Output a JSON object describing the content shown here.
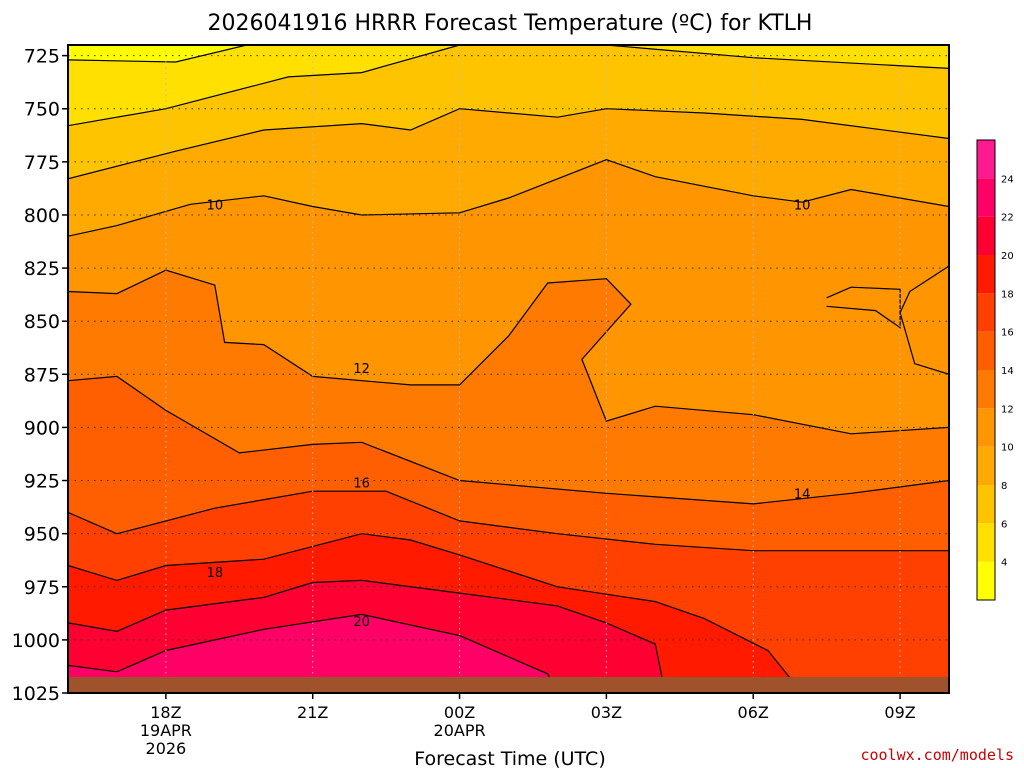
{
  "chart_data": {
    "type": "heatmap",
    "title": "2026041916 HRRR Forecast Temperature (ºC) for KTLH",
    "xlabel": "Forecast Time (UTC)",
    "ylabel": "",
    "credit": "coolwx.com/models",
    "y_axis": {
      "scale": "pressure (inverted)",
      "ylim": [
        1025,
        720
      ],
      "ticks": [
        "725",
        "750",
        "775",
        "800",
        "825",
        "850",
        "875",
        "900",
        "925",
        "950",
        "975",
        "1000",
        "1025"
      ]
    },
    "x_axis": {
      "xlim": [
        "2026-04-19 16Z",
        "2026-04-20 10Z"
      ],
      "ticks": [
        {
          "label": "18Z",
          "sub1": "19APR",
          "sub2": "2026",
          "hour": 18
        },
        {
          "label": "21Z",
          "sub1": "",
          "sub2": "",
          "hour": 21
        },
        {
          "label": "00Z",
          "sub1": "20APR",
          "sub2": "",
          "hour": 24
        },
        {
          "label": "03Z",
          "sub1": "",
          "sub2": "",
          "hour": 27
        },
        {
          "label": "06Z",
          "sub1": "",
          "sub2": "",
          "hour": 30
        },
        {
          "label": "09Z",
          "sub1": "",
          "sub2": "",
          "hour": 33
        }
      ]
    },
    "colorbar": {
      "ticks": [
        "4",
        "6",
        "8",
        "10",
        "12",
        "14",
        "16",
        "18",
        "20",
        "22",
        "24"
      ],
      "bands": [
        {
          "from": 2,
          "to": 4,
          "color": "#ffff00"
        },
        {
          "from": 4,
          "to": 6,
          "color": "#ffe000"
        },
        {
          "from": 6,
          "to": 8,
          "color": "#ffc400"
        },
        {
          "from": 8,
          "to": 10,
          "color": "#ffaa00"
        },
        {
          "from": 10,
          "to": 12,
          "color": "#ff9500"
        },
        {
          "from": 12,
          "to": 14,
          "color": "#ff7a00"
        },
        {
          "from": 14,
          "to": 16,
          "color": "#ff5f00"
        },
        {
          "from": 16,
          "to": 18,
          "color": "#ff4000"
        },
        {
          "from": 18,
          "to": 20,
          "color": "#ff1a00"
        },
        {
          "from": 20,
          "to": 22,
          "color": "#ff0033"
        },
        {
          "from": 22,
          "to": 24,
          "color": "#ff0066"
        },
        {
          "from": 24,
          "to": 26,
          "color": "#ff1a90"
        }
      ]
    },
    "contour_labels": [
      {
        "text": "10",
        "hour": 19.0,
        "p": 795
      },
      {
        "text": "10",
        "hour": 31.0,
        "p": 795
      },
      {
        "text": "12",
        "hour": 22.0,
        "p": 872
      },
      {
        "text": "14",
        "hour": 31.0,
        "p": 931
      },
      {
        "text": "16",
        "hour": 22.0,
        "p": 926
      },
      {
        "text": "18",
        "hour": 19.0,
        "p": 968
      },
      {
        "text": "20",
        "hour": 22.0,
        "p": 991
      }
    ],
    "ground_color": "#a0522d"
  }
}
